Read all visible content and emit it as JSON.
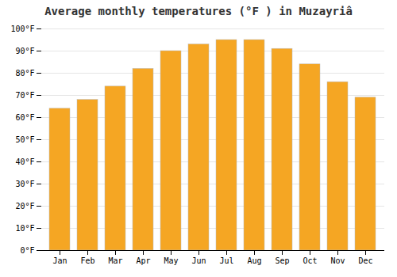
{
  "chart_data": {
    "type": "bar",
    "title": "Average monthly temperatures (°F ) in Muzayriâ",
    "categories": [
      "Jan",
      "Feb",
      "Mar",
      "Apr",
      "May",
      "Jun",
      "Jul",
      "Aug",
      "Sep",
      "Oct",
      "Nov",
      "Dec"
    ],
    "values": [
      64,
      68,
      74,
      82,
      90,
      93,
      95,
      95,
      91,
      84,
      76,
      69
    ],
    "color": "#F5A623",
    "ylim": [
      0,
      100
    ],
    "yticks": [
      {
        "value": 0,
        "label": "0°F"
      },
      {
        "value": 10,
        "label": "10°F"
      },
      {
        "value": 20,
        "label": "20°F"
      },
      {
        "value": 30,
        "label": "30°F"
      },
      {
        "value": 40,
        "label": "40°F"
      },
      {
        "value": 50,
        "label": "50°F"
      },
      {
        "value": 60,
        "label": "60°F"
      },
      {
        "value": 70,
        "label": "70°F"
      },
      {
        "value": 80,
        "label": "80°F"
      },
      {
        "value": 90,
        "label": "90°F"
      },
      {
        "value": 100,
        "label": "100°F"
      }
    ],
    "grid": true
  }
}
